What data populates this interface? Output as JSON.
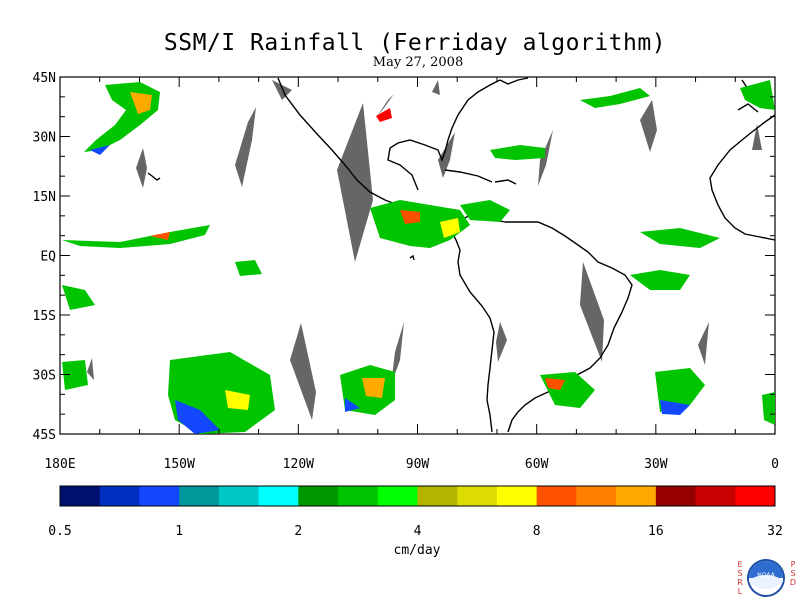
{
  "title": "SSM/I Rainfall (Ferriday algorithm)",
  "subtitle": "May 27, 2008",
  "map": {
    "lat_labels": [
      "45N",
      "30N",
      "15N",
      "EQ",
      "15S",
      "30S",
      "45S"
    ],
    "lon_labels": [
      "180E",
      "150W",
      "120W",
      "90W",
      "60W",
      "30W",
      "0"
    ],
    "lat_range": [
      -45,
      45
    ],
    "lon_range": [
      -180,
      0
    ],
    "missing_data_color": "#666666",
    "coastline_color": "#000000"
  },
  "colorbar": {
    "labels": [
      "0.5",
      "1",
      "2",
      "4",
      "8",
      "16",
      "32"
    ],
    "units": "cm/day",
    "colors": [
      "#00106e",
      "#0030c0",
      "#1448ff",
      "#00989a",
      "#00c8c8",
      "#00ffff",
      "#009600",
      "#00c400",
      "#00ff00",
      "#b4b400",
      "#dcdc00",
      "#ffff00",
      "#ff5000",
      "#ff8000",
      "#ffaa00",
      "#960000",
      "#c80000",
      "#ff0000"
    ]
  },
  "logo": {
    "left_letters": [
      "E",
      "S",
      "R",
      "L"
    ],
    "right_letters": [
      "P",
      "S",
      "D"
    ],
    "emblem_text": "NOAA"
  }
}
